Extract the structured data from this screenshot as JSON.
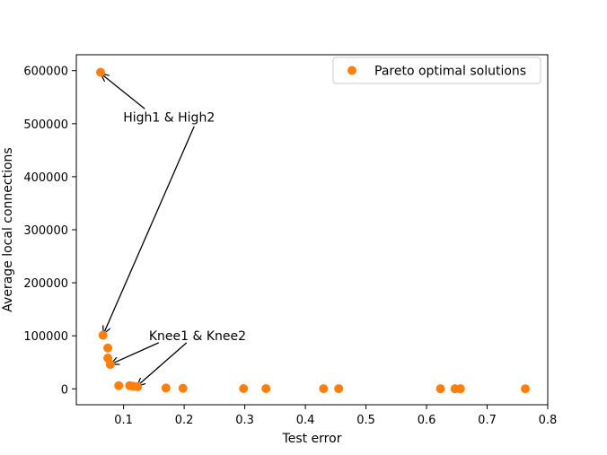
{
  "chart_data": {
    "type": "scatter",
    "title": "",
    "xlabel": "Test error",
    "ylabel": "Average local connections",
    "xlim": [
      0.022,
      0.8
    ],
    "ylim": [
      -30000,
      630000
    ],
    "xticks": [
      0.1,
      0.2,
      0.3,
      0.4,
      0.5,
      0.6,
      0.7,
      0.8
    ],
    "xtick_labels": [
      "0.1",
      "0.2",
      "0.3",
      "0.4",
      "0.5",
      "0.6",
      "0.7",
      "0.8"
    ],
    "yticks": [
      0,
      100000,
      200000,
      300000,
      400000,
      500000,
      600000
    ],
    "ytick_labels": [
      "0",
      "100000",
      "200000",
      "300000",
      "400000",
      "500000",
      "600000"
    ],
    "grid": false,
    "legend_position": "top-right",
    "series": [
      {
        "name": "Pareto optimal solutions",
        "color": "#ff7f0e",
        "points": [
          {
            "x": 0.062,
            "y": 597000
          },
          {
            "x": 0.066,
            "y": 101000
          },
          {
            "x": 0.074,
            "y": 77000
          },
          {
            "x": 0.074,
            "y": 58000
          },
          {
            "x": 0.078,
            "y": 46000
          },
          {
            "x": 0.092,
            "y": 6000
          },
          {
            "x": 0.11,
            "y": 6000
          },
          {
            "x": 0.116,
            "y": 5000
          },
          {
            "x": 0.123,
            "y": 4000
          },
          {
            "x": 0.17,
            "y": 1500
          },
          {
            "x": 0.198,
            "y": 1000
          },
          {
            "x": 0.298,
            "y": 500
          },
          {
            "x": 0.335,
            "y": 500
          },
          {
            "x": 0.43,
            "y": 300
          },
          {
            "x": 0.455,
            "y": 300
          },
          {
            "x": 0.623,
            "y": 200
          },
          {
            "x": 0.647,
            "y": 200
          },
          {
            "x": 0.656,
            "y": 200
          },
          {
            "x": 0.763,
            "y": 100
          }
        ]
      }
    ],
    "annotations": [
      {
        "text": "High1 & High2",
        "text_at": {
          "x": 0.175,
          "y": 512000
        },
        "arrows": [
          {
            "from": {
              "x": 0.135,
              "y": 528000
            },
            "to": {
              "x": 0.063,
              "y": 594000
            }
          },
          {
            "from": {
              "x": 0.2165,
              "y": 495000
            },
            "to": {
              "x": 0.067,
              "y": 104000
            }
          }
        ]
      },
      {
        "text": "Knee1 & Knee2",
        "text_at": {
          "x": 0.222,
          "y": 100000
        },
        "arrows": [
          {
            "from": {
              "x": 0.158,
              "y": 87000
            },
            "to": {
              "x": 0.08,
              "y": 47000
            }
          },
          {
            "from": {
              "x": 0.204,
              "y": 87000
            },
            "to": {
              "x": 0.123,
              "y": 6000
            }
          }
        ]
      }
    ]
  }
}
